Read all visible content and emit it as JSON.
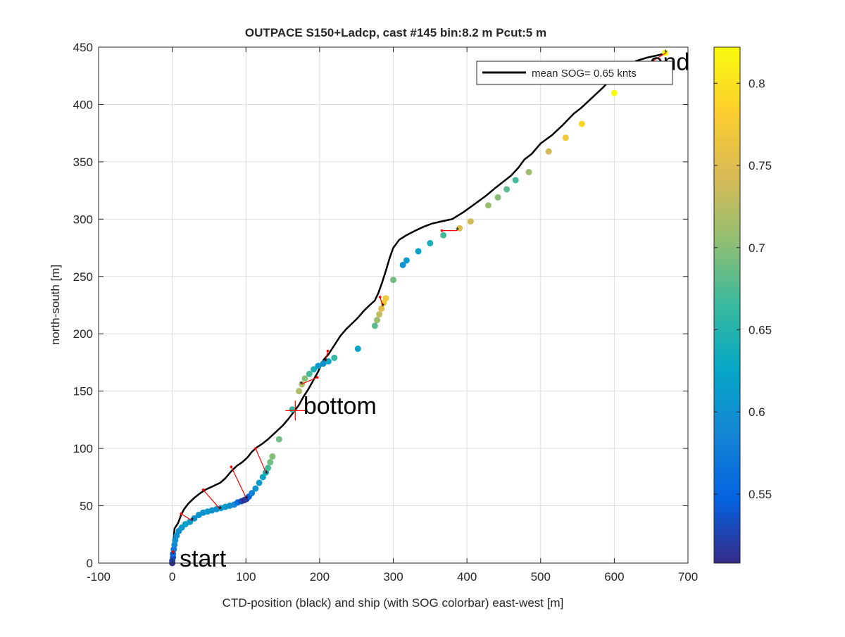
{
  "chart_data": {
    "type": "scatter",
    "title": "OUTPACE S150+Ladcp, cast #145 bin:8.2 m  Pcut:5 m",
    "xlabel": "CTD-position (black) and ship (with SOG colorbar) east-west [m]",
    "ylabel": "north-south [m]",
    "xlim": [
      -100,
      700
    ],
    "ylim": [
      0,
      450
    ],
    "xticks": [
      "-100",
      "0",
      "100",
      "200",
      "300",
      "400",
      "500",
      "600",
      "700"
    ],
    "yticks": [
      "0",
      "50",
      "100",
      "150",
      "200",
      "250",
      "300",
      "350",
      "400",
      "450"
    ],
    "grid": true,
    "legend": {
      "location": "top-right",
      "label": "mean SOG=  0.65 knts",
      "color": "#000000"
    },
    "colorbar": {
      "range": [
        0.508,
        0.822
      ],
      "ticks": [
        "0.55",
        "0.6",
        "0.65",
        "0.7",
        "0.75",
        "0.8"
      ],
      "colormap": "parula"
    },
    "annotations": [
      {
        "label": "start",
        "x": 10,
        "y": -3
      },
      {
        "label": "bottom",
        "x": 178,
        "y": 130
      },
      {
        "label": "end",
        "x": 648,
        "y": 430
      }
    ],
    "bottom_marker": {
      "x": 167,
      "y": 133,
      "color": "#ff0000"
    },
    "ctd_track": [
      [
        0,
        0
      ],
      [
        1,
        10
      ],
      [
        2,
        20
      ],
      [
        3,
        30
      ],
      [
        8,
        35
      ],
      [
        12,
        42
      ],
      [
        16,
        47
      ],
      [
        22,
        52
      ],
      [
        30,
        57
      ],
      [
        38,
        61
      ],
      [
        45,
        64
      ],
      [
        55,
        67
      ],
      [
        65,
        70
      ],
      [
        72,
        74
      ],
      [
        80,
        80
      ],
      [
        88,
        85
      ],
      [
        95,
        88
      ],
      [
        102,
        92
      ],
      [
        108,
        97
      ],
      [
        115,
        101
      ],
      [
        122,
        104
      ],
      [
        130,
        108
      ],
      [
        140,
        114
      ],
      [
        150,
        120
      ],
      [
        158,
        126
      ],
      [
        165,
        132
      ],
      [
        172,
        138
      ],
      [
        178,
        145
      ],
      [
        185,
        152
      ],
      [
        192,
        160
      ],
      [
        198,
        167
      ],
      [
        205,
        177
      ],
      [
        212,
        182
      ],
      [
        220,
        190
      ],
      [
        228,
        198
      ],
      [
        236,
        204
      ],
      [
        244,
        209
      ],
      [
        252,
        214
      ],
      [
        260,
        220
      ],
      [
        268,
        225
      ],
      [
        275,
        229
      ],
      [
        280,
        236
      ],
      [
        285,
        245
      ],
      [
        290,
        255
      ],
      [
        295,
        266
      ],
      [
        300,
        275
      ],
      [
        308,
        282
      ],
      [
        318,
        286
      ],
      [
        330,
        290
      ],
      [
        340,
        293
      ],
      [
        352,
        296
      ],
      [
        365,
        298
      ],
      [
        380,
        300
      ],
      [
        395,
        306
      ],
      [
        410,
        313
      ],
      [
        425,
        320
      ],
      [
        440,
        328
      ],
      [
        452,
        334
      ],
      [
        460,
        338
      ],
      [
        470,
        345
      ],
      [
        478,
        352
      ],
      [
        488,
        357
      ],
      [
        500,
        366
      ],
      [
        515,
        373
      ],
      [
        530,
        382
      ],
      [
        545,
        392
      ],
      [
        555,
        397
      ],
      [
        565,
        403
      ],
      [
        575,
        409
      ],
      [
        585,
        415
      ],
      [
        595,
        422
      ],
      [
        605,
        428
      ],
      [
        618,
        434
      ],
      [
        630,
        438
      ],
      [
        645,
        441
      ],
      [
        660,
        443
      ],
      [
        670,
        445
      ]
    ],
    "ship_points": [
      {
        "x": 0,
        "y": 0,
        "c": 0.51
      },
      {
        "x": 0,
        "y": 2,
        "c": 0.52
      },
      {
        "x": 1,
        "y": 5,
        "c": 0.53
      },
      {
        "x": 1,
        "y": 8,
        "c": 0.55
      },
      {
        "x": 2,
        "y": 12,
        "c": 0.57
      },
      {
        "x": 3,
        "y": 16,
        "c": 0.59
      },
      {
        "x": 4,
        "y": 20,
        "c": 0.6
      },
      {
        "x": 6,
        "y": 24,
        "c": 0.6
      },
      {
        "x": 9,
        "y": 28,
        "c": 0.6
      },
      {
        "x": 13,
        "y": 31,
        "c": 0.61
      },
      {
        "x": 18,
        "y": 34,
        "c": 0.62
      },
      {
        "x": 24,
        "y": 36,
        "c": 0.61
      },
      {
        "x": 30,
        "y": 39,
        "c": 0.6
      },
      {
        "x": 36,
        "y": 42,
        "c": 0.6
      },
      {
        "x": 42,
        "y": 44,
        "c": 0.6
      },
      {
        "x": 48,
        "y": 45,
        "c": 0.61
      },
      {
        "x": 54,
        "y": 46,
        "c": 0.6
      },
      {
        "x": 60,
        "y": 47,
        "c": 0.6
      },
      {
        "x": 66,
        "y": 48,
        "c": 0.61
      },
      {
        "x": 72,
        "y": 49,
        "c": 0.61
      },
      {
        "x": 78,
        "y": 50,
        "c": 0.6
      },
      {
        "x": 84,
        "y": 51,
        "c": 0.59
      },
      {
        "x": 89,
        "y": 53,
        "c": 0.56
      },
      {
        "x": 94,
        "y": 54,
        "c": 0.53
      },
      {
        "x": 98,
        "y": 55,
        "c": 0.51
      },
      {
        "x": 101,
        "y": 56,
        "c": 0.52
      },
      {
        "x": 104,
        "y": 58,
        "c": 0.55
      },
      {
        "x": 108,
        "y": 61,
        "c": 0.58
      },
      {
        "x": 113,
        "y": 65,
        "c": 0.6
      },
      {
        "x": 118,
        "y": 70,
        "c": 0.61
      },
      {
        "x": 123,
        "y": 75,
        "c": 0.62
      },
      {
        "x": 127,
        "y": 79,
        "c": 0.64
      },
      {
        "x": 130,
        "y": 83,
        "c": 0.67
      },
      {
        "x": 133,
        "y": 88,
        "c": 0.69
      },
      {
        "x": 136,
        "y": 93,
        "c": 0.7
      },
      {
        "x": 145,
        "y": 108,
        "c": 0.69
      },
      {
        "x": 163,
        "y": 134,
        "c": 0.66
      },
      {
        "x": 172,
        "y": 150,
        "c": 0.72
      },
      {
        "x": 176,
        "y": 156,
        "c": 0.72
      },
      {
        "x": 180,
        "y": 161,
        "c": 0.7
      },
      {
        "x": 186,
        "y": 165,
        "c": 0.67
      },
      {
        "x": 192,
        "y": 169,
        "c": 0.64
      },
      {
        "x": 198,
        "y": 172,
        "c": 0.61
      },
      {
        "x": 205,
        "y": 174,
        "c": 0.6
      },
      {
        "x": 212,
        "y": 176,
        "c": 0.63
      },
      {
        "x": 220,
        "y": 179,
        "c": 0.66
      },
      {
        "x": 252,
        "y": 187,
        "c": 0.62
      },
      {
        "x": 275,
        "y": 207,
        "c": 0.68
      },
      {
        "x": 278,
        "y": 212,
        "c": 0.71
      },
      {
        "x": 281,
        "y": 217,
        "c": 0.73
      },
      {
        "x": 284,
        "y": 222,
        "c": 0.75
      },
      {
        "x": 287,
        "y": 227,
        "c": 0.77
      },
      {
        "x": 290,
        "y": 231,
        "c": 0.77
      },
      {
        "x": 300,
        "y": 247,
        "c": 0.69
      },
      {
        "x": 313,
        "y": 260,
        "c": 0.6
      },
      {
        "x": 318,
        "y": 264,
        "c": 0.61
      },
      {
        "x": 334,
        "y": 272,
        "c": 0.62
      },
      {
        "x": 350,
        "y": 279,
        "c": 0.64
      },
      {
        "x": 368,
        "y": 286,
        "c": 0.67
      },
      {
        "x": 390,
        "y": 292,
        "c": 0.75
      },
      {
        "x": 405,
        "y": 298,
        "c": 0.74
      },
      {
        "x": 429,
        "y": 312,
        "c": 0.71
      },
      {
        "x": 442,
        "y": 319,
        "c": 0.7
      },
      {
        "x": 454,
        "y": 326,
        "c": 0.68
      },
      {
        "x": 466,
        "y": 334,
        "c": 0.67
      },
      {
        "x": 484,
        "y": 341,
        "c": 0.71
      },
      {
        "x": 511,
        "y": 359,
        "c": 0.74
      },
      {
        "x": 534,
        "y": 371,
        "c": 0.77
      },
      {
        "x": 556,
        "y": 383,
        "c": 0.79
      },
      {
        "x": 600,
        "y": 410,
        "c": 0.82
      },
      {
        "x": 669,
        "y": 445,
        "c": 0.82
      }
    ],
    "offset_links": [
      {
        "ship": [
          1,
          8
        ],
        "ctd": [
          1,
          10
        ]
      },
      {
        "ship": [
          27,
          37
        ],
        "ctd": [
          12,
          43
        ]
      },
      {
        "ship": [
          65,
          47
        ],
        "ctd": [
          42,
          64
        ]
      },
      {
        "ship": [
          101,
          56
        ],
        "ctd": [
          80,
          84
        ]
      },
      {
        "ship": [
          128,
          78
        ],
        "ctd": [
          113,
          100
        ]
      },
      {
        "ship": [
          175,
          156
        ],
        "ctd": [
          197,
          162
        ]
      },
      {
        "ship": [
          208,
          176
        ],
        "ctd": [
          211,
          185
        ]
      },
      {
        "ship": [
          286,
          224
        ],
        "ctd": [
          282,
          232
        ]
      },
      {
        "ship": [
          387,
          290
        ],
        "ctd": [
          366,
          290
        ]
      },
      {
        "ship": [
          670,
          445
        ],
        "ctd": [
          640,
          433
        ]
      }
    ]
  }
}
